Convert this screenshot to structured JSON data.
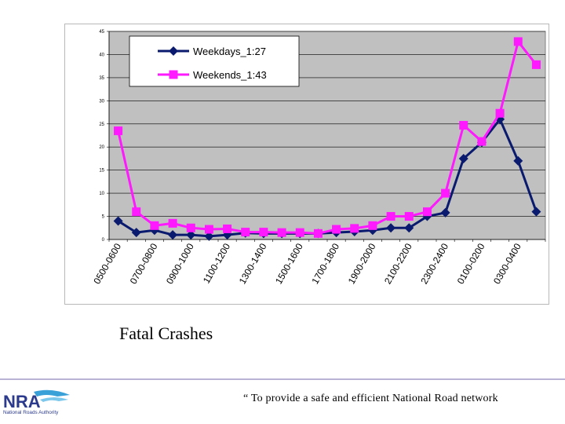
{
  "chart_data": {
    "type": "line",
    "title": "",
    "xlabel": "",
    "ylabel": "",
    "ylim": [
      0,
      45
    ],
    "yticks": [
      0,
      5,
      10,
      15,
      20,
      25,
      30,
      35,
      40,
      45
    ],
    "grid": true,
    "legend_position": "top-left",
    "x_tick_labels": [
      "0500-0600",
      "0700-0800",
      "0900-1000",
      "1100-1200",
      "1300-1400",
      "1500-1600",
      "1700-1800",
      "1900-2000",
      "2100-2200",
      "2300-2400",
      "0100-0200",
      "0300-0400"
    ],
    "series": [
      {
        "name": "Weekdays_1:27",
        "color": "#0a1a6e",
        "marker": "diamond",
        "values": [
          4,
          1.5,
          2,
          1,
          1,
          0.7,
          1,
          1.4,
          1.3,
          1.3,
          1.3,
          1.3,
          1.5,
          1.7,
          2,
          2.5,
          2.5,
          5,
          5.8,
          17.5,
          21,
          26,
          17,
          6
        ]
      },
      {
        "name": "Weekends_1:43",
        "color": "#ff19ff",
        "marker": "square",
        "values": [
          23.5,
          6,
          3,
          3.5,
          2.5,
          2.2,
          2.3,
          1.6,
          1.6,
          1.5,
          1.5,
          1.3,
          2.2,
          2.4,
          3,
          5,
          5,
          6,
          10,
          24.7,
          21.2,
          27.3,
          42.8,
          37.8
        ]
      }
    ]
  },
  "caption": "Fatal Crashes",
  "footer": {
    "tagline": "“ To provide a safe and efficient National Road network",
    "logo_text": "NRA",
    "logo_subtitle": "National Roads Authority"
  }
}
